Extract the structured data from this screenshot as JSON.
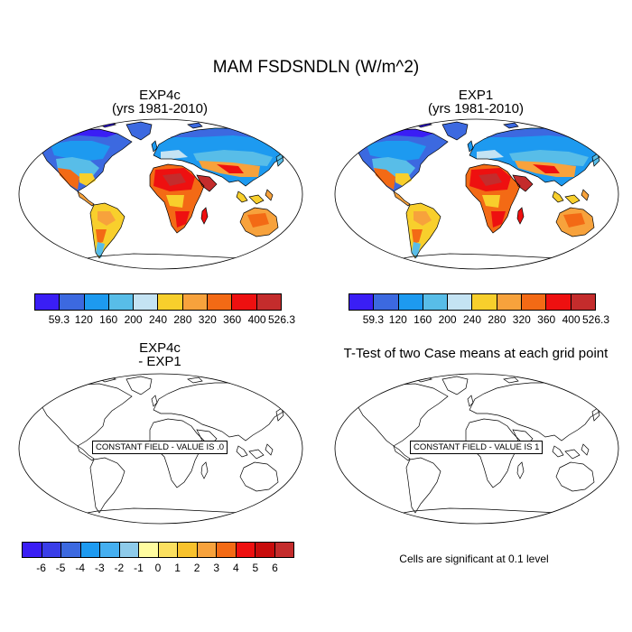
{
  "main_title": "MAM FSDSNDLN (W/m^2)",
  "panels": [
    {
      "title_line1": "EXP4c",
      "title_line2": "(yrs 1981-2010)"
    },
    {
      "title_line1": "EXP1",
      "title_line2": "(yrs 1981-2010)"
    },
    {
      "title_line1": "EXP4c",
      "title_line2": "- EXP1",
      "constant_field_label": "CONSTANT FIELD - VALUE IS .0"
    },
    {
      "title_line1": "T-Test of two Case means at each grid point",
      "constant_field_label": "CONSTANT FIELD - VALUE IS 1"
    }
  ],
  "colorbar_top": {
    "labels": [
      "59.3",
      "120",
      "160",
      "200",
      "240",
      "280",
      "320",
      "360",
      "400",
      "526.3"
    ],
    "colors": [
      "#3a1ef5",
      "#3c69e0",
      "#1d9af0",
      "#58bde8",
      "#c4e3f3",
      "#f8cf2c",
      "#f7a23c",
      "#f36a15",
      "#ee1010",
      "#c42c2c"
    ]
  },
  "colorbar_bottom": {
    "labels": [
      "-6",
      "-5",
      "-4",
      "-3",
      "-2",
      "-1",
      "0",
      "1",
      "2",
      "3",
      "4",
      "5",
      "6"
    ],
    "colors": [
      "#3a1ef5",
      "#3a3ee8",
      "#3c69e0",
      "#1d9af0",
      "#45aff0",
      "#8ecbea",
      "#fffca0",
      "#fbe060",
      "#f8c22c",
      "#f7a23c",
      "#f36a15",
      "#ee1010",
      "#c80c0c",
      "#c42c2c"
    ]
  },
  "significance_note": "Cells are significant at 0.1 level"
}
